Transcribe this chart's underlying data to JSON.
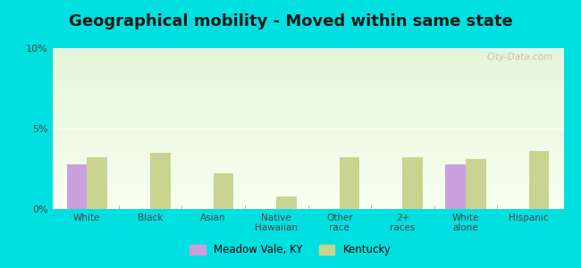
{
  "title": "Geographical mobility - Moved within same state",
  "categories": [
    "White",
    "Black",
    "Asian",
    "Native\nHawaiian",
    "Other\nrace",
    "2+\nraces",
    "White\nalone",
    "Hispanic"
  ],
  "meadow_vale": [
    2.8,
    0.0,
    0.0,
    0.0,
    0.0,
    0.0,
    2.8,
    0.0
  ],
  "kentucky": [
    3.2,
    3.5,
    2.2,
    0.8,
    3.2,
    3.2,
    3.1,
    3.6
  ],
  "meadow_vale_color": "#c9a0dc",
  "kentucky_color": "#c8d490",
  "ylim": [
    0,
    10
  ],
  "yticks": [
    0,
    5,
    10
  ],
  "ytick_labels": [
    "0%",
    "5%",
    "10%"
  ],
  "bg_outer": "#00e0e0",
  "bg_plot_top": "#e4f5d8",
  "bg_plot_bottom": "#f8fff0",
  "legend_meadow": "Meadow Vale, KY",
  "legend_kentucky": "Kentucky",
  "bar_width": 0.32,
  "title_fontsize": 13,
  "watermark": "City-Data.com"
}
